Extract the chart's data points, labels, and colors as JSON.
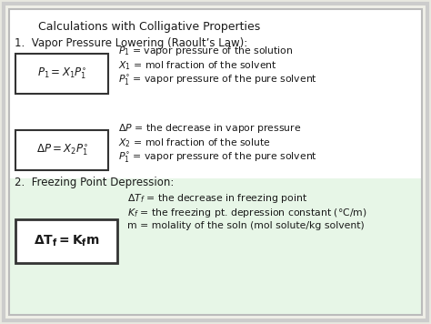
{
  "title": "   Calculations with Colligative Properties",
  "bg_color": "#e8e8e0",
  "inner_bg": "#ffffff",
  "text_color": "#1a1a1a",
  "box_edge_color": "#333333",
  "green_color": "#d8f0d8",
  "section1_header": "1.  Vapor Pressure Lowering (Raoult’s Law):",
  "section2_header": "2.  Freezing Point Depression:",
  "box1_formula": "$P_1 = X_1 P_1^{\\circ}$",
  "box2_formula": "$\\Delta P = X_2 P_1^{\\circ}$",
  "box3_formula": "$\\mathbf{\\Delta T_f = K_f m}$",
  "desc1_line1": "$P_1$ = vapor pressure of the solution",
  "desc1_line2": "$X_1$ = mol fraction of the solvent",
  "desc1_line3": "$P^{\\circ}_1$ = vapor pressure of the pure solvent",
  "desc2_line1": "$\\Delta P$ = the decrease in vapor pressure",
  "desc2_line2": "$X_2$ = mol fraction of the solute",
  "desc2_line3": "$P^{\\circ}_1$ = vapor pressure of the pure solvent",
  "desc3_line1": "$\\Delta T_f$ = the decrease in freezing point",
  "desc3_line2": "$K_f$ = the freezing pt. depression constant (°C/m)",
  "desc3_line3": "m = molality of the soln (mol solute/kg solvent)",
  "fs_title": 9.0,
  "fs_header": 8.5,
  "fs_body": 7.8,
  "fs_formula": 8.5
}
